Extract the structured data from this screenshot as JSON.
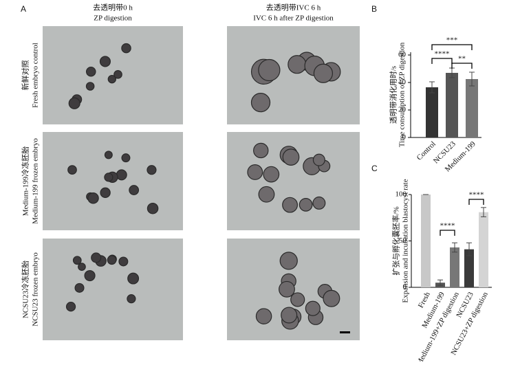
{
  "panel_a": {
    "label": "A",
    "columns": [
      {
        "title": "去透明带0 h",
        "subtitle": "ZP digestion"
      },
      {
        "title": "去透明带IVC 6 h",
        "subtitle": "IVC 6 h after ZP digestion"
      }
    ],
    "rows": [
      {
        "title": "新鲜对照",
        "subtitle": "Fresh embryo control"
      },
      {
        "title": "Medium-199冷冻胚胎",
        "subtitle": "Medium-199 frozen embryo"
      },
      {
        "title": "NCSU23冷冻胚胎",
        "subtitle": "NCSU23 frozen embryo"
      }
    ]
  },
  "chart_data": [
    {
      "type": "bar",
      "panel_label": "B",
      "y_label": [
        "透明带消化用时/s",
        "Time consumption of ZP digestion"
      ],
      "categories": [
        "Control",
        "NCSU23",
        "Medium-199"
      ],
      "values": [
        36.5,
        47,
        42.5
      ],
      "errors": [
        4,
        3.5,
        5
      ],
      "colors": [
        "#333333",
        "#555555",
        "#777777"
      ],
      "ylim": [
        0,
        62
      ],
      "yticks": [
        0,
        20,
        40,
        60
      ],
      "annotations": [
        {
          "text": "***",
          "between": [
            "Control",
            "Medium-199"
          ]
        },
        {
          "text": "****",
          "between": [
            "Control",
            "NCSU23"
          ]
        },
        {
          "text": "**",
          "between": [
            "NCSU23",
            "Medium-199"
          ]
        }
      ]
    },
    {
      "type": "bar",
      "panel_label": "C",
      "y_label": [
        "扩张与孵化囊胚率/%",
        "Expansion and incubation blastocyst rate"
      ],
      "categories": [
        "Fresh",
        "Medium-199",
        "Medium-199+ZP digestion",
        "NCSU23",
        "NCSU23+ZP digestion"
      ],
      "values": [
        100,
        5,
        43,
        41,
        81
      ],
      "errors": [
        0,
        3,
        5,
        7,
        5
      ],
      "colors": [
        "#c8c8c8",
        "#555555",
        "#777777",
        "#3a3a3a",
        "#d4d4d4"
      ],
      "ylim": [
        0,
        100
      ],
      "yticks": [
        0,
        50,
        100
      ],
      "annotations": [
        {
          "text": "****",
          "between": [
            "Medium-199",
            "Medium-199+ZP digestion"
          ]
        },
        {
          "text": "****",
          "between": [
            "NCSU23",
            "NCSU23+ZP digestion"
          ]
        }
      ]
    }
  ]
}
